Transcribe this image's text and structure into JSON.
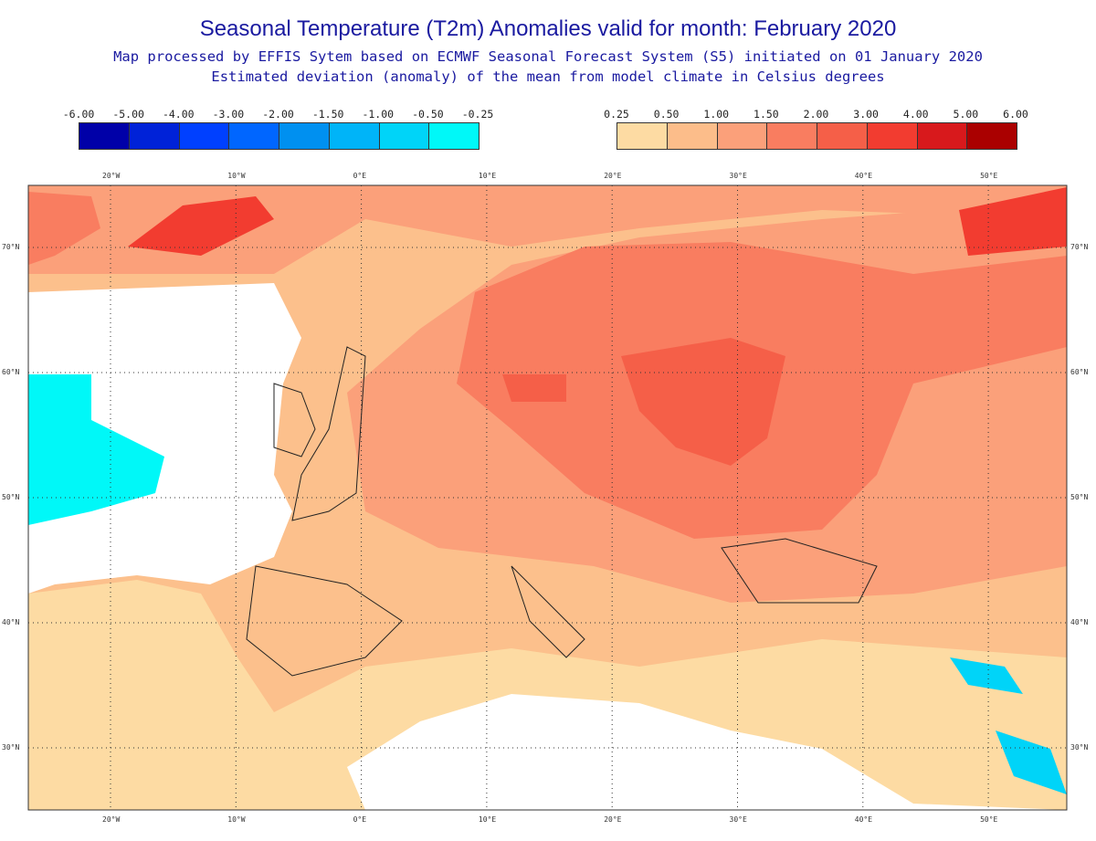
{
  "header": {
    "title": "Seasonal Temperature (T2m) Anomalies valid for month: February 2020",
    "subtitle1": "Map processed by EFFIS Sytem based on ECMWF Seasonal Forecast System (S5) initiated on 01 January 2020",
    "subtitle2": "Estimated deviation (anomaly) of the mean from model climate in Celsius degrees"
  },
  "legend_negative": {
    "ticks": [
      "-6.00",
      "-5.00",
      "-4.00",
      "-3.00",
      "-2.00",
      "-1.50",
      "-1.00",
      "-0.50",
      "-0.25"
    ],
    "colors": [
      "#0000a8",
      "#0022d8",
      "#0040ff",
      "#0066ff",
      "#0090f0",
      "#00b4f8",
      "#00d4f8",
      "#00f8f8"
    ]
  },
  "legend_positive": {
    "ticks": [
      "0.25",
      "0.50",
      "1.00",
      "1.50",
      "2.00",
      "3.00",
      "4.00",
      "5.00",
      "6.00"
    ],
    "colors": [
      "#fddba3",
      "#fcbd8a",
      "#fba07a",
      "#f97d60",
      "#f55f48",
      "#f23c30",
      "#d8191c",
      "#aa0000"
    ]
  },
  "map": {
    "lon_labels": [
      "20°W",
      "10°W",
      "0°E",
      "10°E",
      "20°E",
      "30°E",
      "40°E",
      "50°E"
    ],
    "lat_labels": [
      "70°N",
      "60°N",
      "50°N",
      "40°N",
      "30°N"
    ]
  }
}
